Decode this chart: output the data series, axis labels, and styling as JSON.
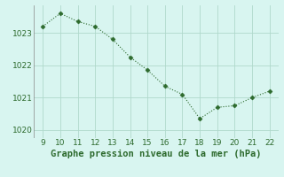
{
  "x": [
    9,
    10,
    11,
    12,
    13,
    14,
    15,
    16,
    17,
    18,
    19,
    20,
    21,
    22
  ],
  "y": [
    1023.2,
    1023.6,
    1023.35,
    1023.2,
    1022.8,
    1022.25,
    1021.85,
    1021.35,
    1021.1,
    1020.35,
    1020.7,
    1020.75,
    1021.0,
    1021.2
  ],
  "line_color": "#2d6a2d",
  "marker": "D",
  "marker_size": 2.5,
  "background_color": "#d8f5f0",
  "grid_color": "#b0d9cc",
  "xlabel": "Graphe pression niveau de la mer (hPa)",
  "xlabel_fontsize": 7.5,
  "xlabel_color": "#2d6a2d",
  "xlabel_bold": true,
  "xlim": [
    8.5,
    22.5
  ],
  "ylim": [
    1019.75,
    1023.85
  ],
  "xticks": [
    9,
    10,
    11,
    12,
    13,
    14,
    15,
    16,
    17,
    18,
    19,
    20,
    21,
    22
  ],
  "ytick_labels": [
    "1020",
    "1021",
    "1022",
    "1023"
  ],
  "ytick_values": [
    1020,
    1021,
    1022,
    1023
  ],
  "tick_fontsize": 6.5,
  "tick_color": "#2d6a2d",
  "line_width": 0.8
}
